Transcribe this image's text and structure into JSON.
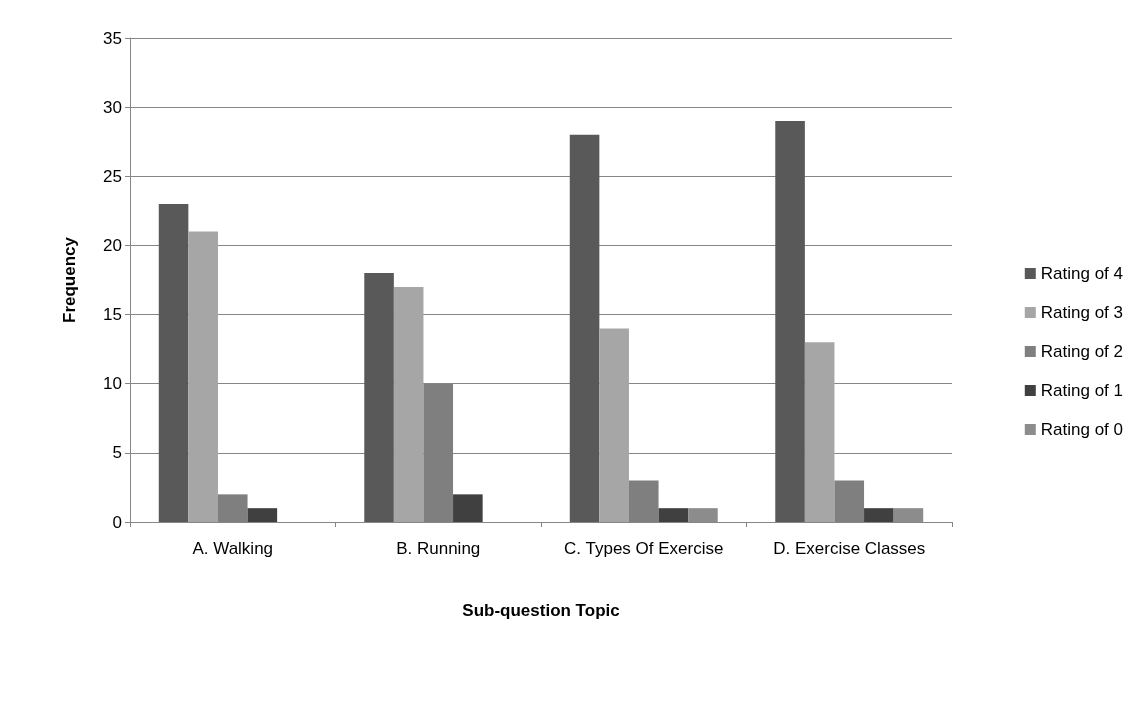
{
  "chart_data": {
    "type": "bar",
    "xlabel": "Sub-question Topic",
    "ylabel": "Frequency",
    "categories": [
      "A. Walking",
      "B. Running",
      "C. Types Of Exercise",
      "D. Exercise Classes"
    ],
    "series": [
      {
        "name": "Rating of 4",
        "color": "#595959",
        "values": [
          23,
          18,
          28,
          29
        ]
      },
      {
        "name": "Rating of 3",
        "color": "#a6a6a6",
        "values": [
          21,
          17,
          14,
          13
        ]
      },
      {
        "name": "Rating of 2",
        "color": "#7f7f7f",
        "values": [
          2,
          10,
          3,
          3
        ]
      },
      {
        "name": "Rating of 1",
        "color": "#404040",
        "values": [
          1,
          2,
          1,
          1
        ]
      },
      {
        "name": "Rating of 0",
        "color": "#8c8c8c",
        "values": [
          0,
          0,
          1,
          1
        ]
      }
    ],
    "ylim": [
      0,
      35
    ],
    "yticks": [
      0,
      5,
      10,
      15,
      20,
      25,
      30,
      35
    ],
    "grid": "y",
    "legend": "right"
  }
}
